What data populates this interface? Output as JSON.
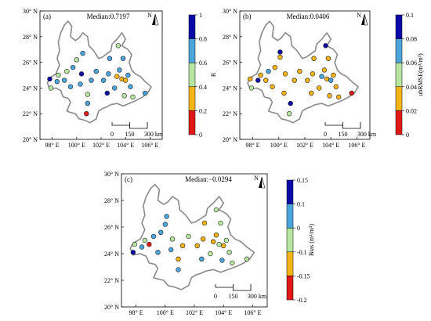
{
  "panels": [
    {
      "label": "(a)",
      "median_text": "Median:0.7197",
      "north_label": "N",
      "lon_ticks": [
        "98° E",
        "100° E",
        "102° E",
        "104° E",
        "106° E"
      ],
      "lat_ticks": [
        "30° N",
        "28° N",
        "26° N",
        "24° N",
        "22° N",
        "20° N"
      ],
      "scalebar": {
        "labels": [
          "0",
          "150",
          "300 km"
        ]
      },
      "colorbar": {
        "title": "R",
        "ticks": [
          "1",
          "0.8",
          "0.6",
          "0.4",
          "0.2",
          "0"
        ],
        "colors": [
          "#0a0aa8",
          "#4aa6dc",
          "#b6e6a0",
          "#f4b416",
          "#e01818"
        ]
      },
      "stations": [
        {
          "lon": 97.8,
          "lat": 24.7,
          "color": "#0a0aa8"
        },
        {
          "lon": 97.9,
          "lat": 24.0,
          "color": "#b6e6a0"
        },
        {
          "lon": 98.4,
          "lat": 24.5,
          "color": "#4aa6dc"
        },
        {
          "lon": 98.5,
          "lat": 25.0,
          "color": "#b6e6a0"
        },
        {
          "lon": 99.0,
          "lat": 24.6,
          "color": "#4aa6dc"
        },
        {
          "lon": 99.2,
          "lat": 25.3,
          "color": "#b6e6a0"
        },
        {
          "lon": 99.5,
          "lat": 24.1,
          "color": "#4aa6dc"
        },
        {
          "lon": 99.7,
          "lat": 25.6,
          "color": "#4aa6dc"
        },
        {
          "lon": 100.0,
          "lat": 26.2,
          "color": "#b6e6a0"
        },
        {
          "lon": 100.4,
          "lat": 25.1,
          "color": "#0a0aa8"
        },
        {
          "lon": 100.5,
          "lat": 26.7,
          "color": "#4aa6dc"
        },
        {
          "lon": 100.3,
          "lat": 24.3,
          "color": "#4aa6dc"
        },
        {
          "lon": 100.9,
          "lat": 23.5,
          "color": "#b6e6a0"
        },
        {
          "lon": 101.2,
          "lat": 24.6,
          "color": "#4aa6dc"
        },
        {
          "lon": 100.9,
          "lat": 22.8,
          "color": "#4aa6dc"
        },
        {
          "lon": 100.8,
          "lat": 22.0,
          "color": "#e01818"
        },
        {
          "lon": 101.6,
          "lat": 25.3,
          "color": "#4aa6dc"
        },
        {
          "lon": 102.2,
          "lat": 24.6,
          "color": "#4aa6dc"
        },
        {
          "lon": 102.6,
          "lat": 25.1,
          "color": "#4aa6dc"
        },
        {
          "lon": 102.5,
          "lat": 23.6,
          "color": "#0a0aa8"
        },
        {
          "lon": 103.1,
          "lat": 24.0,
          "color": "#4aa6dc"
        },
        {
          "lon": 103.3,
          "lat": 24.9,
          "color": "#f4b416"
        },
        {
          "lon": 103.7,
          "lat": 24.7,
          "color": "#f4b416"
        },
        {
          "lon": 103.5,
          "lat": 25.4,
          "color": "#4aa6dc"
        },
        {
          "lon": 104.0,
          "lat": 24.6,
          "color": "#f4b416"
        },
        {
          "lon": 103.9,
          "lat": 23.4,
          "color": "#b6e6a0"
        },
        {
          "lon": 104.4,
          "lat": 24.1,
          "color": "#4aa6dc"
        },
        {
          "lon": 104.2,
          "lat": 25.0,
          "color": "#4aa6dc"
        },
        {
          "lon": 103.8,
          "lat": 26.3,
          "color": "#4aa6dc"
        },
        {
          "lon": 103.4,
          "lat": 27.3,
          "color": "#b6e6a0"
        },
        {
          "lon": 102.7,
          "lat": 26.3,
          "color": "#4aa6dc"
        },
        {
          "lon": 104.6,
          "lat": 23.3,
          "color": "#b6e6a0"
        },
        {
          "lon": 105.6,
          "lat": 23.6,
          "color": "#4aa6dc"
        }
      ]
    },
    {
      "label": "(b)",
      "median_text": "Median:0.0406",
      "north_label": "N",
      "lon_ticks": [
        "98° E",
        "100° E",
        "102° E",
        "104° E",
        "106° E"
      ],
      "lat_ticks": [
        "30° N",
        "28° N",
        "26° N",
        "24° N",
        "22° N",
        "20° N"
      ],
      "scalebar": {
        "labels": [
          "0",
          "150",
          "300 km"
        ]
      },
      "colorbar": {
        "title": "ubRMSE(m³/m³)",
        "ticks": [
          "0.1",
          "0.08",
          "0.06",
          "0.04",
          "0.02",
          "0"
        ],
        "colors": [
          "#0a0aa8",
          "#4aa6dc",
          "#b6e6a0",
          "#f4b416",
          "#e01818"
        ]
      },
      "stations": [
        {
          "lon": 97.8,
          "lat": 24.7,
          "color": "#f4b416"
        },
        {
          "lon": 97.9,
          "lat": 24.0,
          "color": "#b6e6a0"
        },
        {
          "lon": 98.4,
          "lat": 24.6,
          "color": "#0a0aa8"
        },
        {
          "lon": 98.6,
          "lat": 25.0,
          "color": "#f4b416"
        },
        {
          "lon": 99.0,
          "lat": 24.6,
          "color": "#f4b416"
        },
        {
          "lon": 99.2,
          "lat": 25.3,
          "color": "#4aa6dc"
        },
        {
          "lon": 99.5,
          "lat": 24.1,
          "color": "#f4b416"
        },
        {
          "lon": 99.7,
          "lat": 25.6,
          "color": "#f4b416"
        },
        {
          "lon": 100.1,
          "lat": 26.4,
          "color": "#f4b416"
        },
        {
          "lon": 100.1,
          "lat": 26.8,
          "color": "#0a0aa8"
        },
        {
          "lon": 100.5,
          "lat": 25.1,
          "color": "#f4b416"
        },
        {
          "lon": 100.4,
          "lat": 23.6,
          "color": "#f4b416"
        },
        {
          "lon": 100.9,
          "lat": 22.8,
          "color": "#0a0aa8"
        },
        {
          "lon": 101.2,
          "lat": 24.6,
          "color": "#f4b416"
        },
        {
          "lon": 100.8,
          "lat": 22.0,
          "color": "#b6e6a0"
        },
        {
          "lon": 101.6,
          "lat": 25.3,
          "color": "#f4b416"
        },
        {
          "lon": 102.2,
          "lat": 24.6,
          "color": "#f4b416"
        },
        {
          "lon": 102.6,
          "lat": 25.1,
          "color": "#f4b416"
        },
        {
          "lon": 102.5,
          "lat": 23.6,
          "color": "#f4b416"
        },
        {
          "lon": 103.1,
          "lat": 24.0,
          "color": "#f4b416"
        },
        {
          "lon": 103.3,
          "lat": 24.9,
          "color": "#4aa6dc"
        },
        {
          "lon": 103.7,
          "lat": 24.7,
          "color": "#f4b416"
        },
        {
          "lon": 103.5,
          "lat": 25.4,
          "color": "#f4b416"
        },
        {
          "lon": 104.0,
          "lat": 24.6,
          "color": "#4aa6dc"
        },
        {
          "lon": 103.9,
          "lat": 23.4,
          "color": "#f4b416"
        },
        {
          "lon": 104.4,
          "lat": 24.1,
          "color": "#f4b416"
        },
        {
          "lon": 104.2,
          "lat": 25.0,
          "color": "#f4b416"
        },
        {
          "lon": 103.8,
          "lat": 26.3,
          "color": "#f4b416"
        },
        {
          "lon": 103.6,
          "lat": 27.3,
          "color": "#0a0aa8"
        },
        {
          "lon": 102.7,
          "lat": 26.3,
          "color": "#f4b416"
        },
        {
          "lon": 104.6,
          "lat": 23.3,
          "color": "#f4b416"
        },
        {
          "lon": 105.6,
          "lat": 23.6,
          "color": "#e01818"
        }
      ]
    },
    {
      "label": "(c)",
      "median_text": "Median:−0.0294",
      "north_label": "N",
      "lon_ticks": [
        "98° E",
        "100° E",
        "102° E",
        "104° E",
        "106° E"
      ],
      "lat_ticks": [
        "30° N",
        "28° N",
        "26° N",
        "24° N",
        "22° N",
        "20° N"
      ],
      "scalebar": {
        "labels": [
          "0",
          "150",
          "300 km"
        ]
      },
      "colorbar": {
        "title": "Bias (m³/m³)",
        "ticks": [
          "0.15",
          "0.1",
          "0",
          "-0.1",
          "-0.15",
          "-0.2"
        ],
        "colors": [
          "#0a0aa8",
          "#4aa6dc",
          "#b6e6a0",
          "#f4b416",
          "#e01818"
        ]
      },
      "stations": [
        {
          "lon": 97.8,
          "lat": 24.1,
          "color": "#0a0aa8"
        },
        {
          "lon": 97.9,
          "lat": 24.7,
          "color": "#b6e6a0"
        },
        {
          "lon": 98.4,
          "lat": 24.5,
          "color": "#4aa6dc"
        },
        {
          "lon": 98.6,
          "lat": 25.0,
          "color": "#b6e6a0"
        },
        {
          "lon": 98.9,
          "lat": 24.7,
          "color": "#e01818"
        },
        {
          "lon": 99.2,
          "lat": 25.3,
          "color": "#4aa6dc"
        },
        {
          "lon": 99.5,
          "lat": 24.1,
          "color": "#4aa6dc"
        },
        {
          "lon": 99.7,
          "lat": 25.6,
          "color": "#4aa6dc"
        },
        {
          "lon": 100.0,
          "lat": 26.2,
          "color": "#4aa6dc"
        },
        {
          "lon": 100.1,
          "lat": 26.8,
          "color": "#4aa6dc"
        },
        {
          "lon": 100.5,
          "lat": 25.1,
          "color": "#b6e6a0"
        },
        {
          "lon": 100.4,
          "lat": 24.3,
          "color": "#4aa6dc"
        },
        {
          "lon": 100.9,
          "lat": 23.6,
          "color": "#f4b416"
        },
        {
          "lon": 101.2,
          "lat": 24.6,
          "color": "#f4b416"
        },
        {
          "lon": 100.9,
          "lat": 22.8,
          "color": "#4aa6dc"
        },
        {
          "lon": 101.6,
          "lat": 25.3,
          "color": "#b6e6a0"
        },
        {
          "lon": 102.2,
          "lat": 24.6,
          "color": "#f4b416"
        },
        {
          "lon": 102.6,
          "lat": 25.1,
          "color": "#f4b416"
        },
        {
          "lon": 102.5,
          "lat": 23.6,
          "color": "#4aa6dc"
        },
        {
          "lon": 103.1,
          "lat": 24.0,
          "color": "#b6e6a0"
        },
        {
          "lon": 103.3,
          "lat": 24.9,
          "color": "#f4b416"
        },
        {
          "lon": 103.7,
          "lat": 24.7,
          "color": "#b6e6a0"
        },
        {
          "lon": 103.5,
          "lat": 25.4,
          "color": "#f4b416"
        },
        {
          "lon": 104.0,
          "lat": 24.6,
          "color": "#f4b416"
        },
        {
          "lon": 103.9,
          "lat": 23.5,
          "color": "#4aa6dc"
        },
        {
          "lon": 104.4,
          "lat": 24.1,
          "color": "#b6e6a0"
        },
        {
          "lon": 104.2,
          "lat": 25.0,
          "color": "#b6e6a0"
        },
        {
          "lon": 103.8,
          "lat": 26.3,
          "color": "#b6e6a0"
        },
        {
          "lon": 103.5,
          "lat": 27.3,
          "color": "#b6e6a0"
        },
        {
          "lon": 102.7,
          "lat": 26.3,
          "color": "#f4b416"
        },
        {
          "lon": 104.6,
          "lat": 23.3,
          "color": "#b6e6a0"
        },
        {
          "lon": 105.6,
          "lat": 23.6,
          "color": "#b6e6a0"
        }
      ]
    }
  ]
}
